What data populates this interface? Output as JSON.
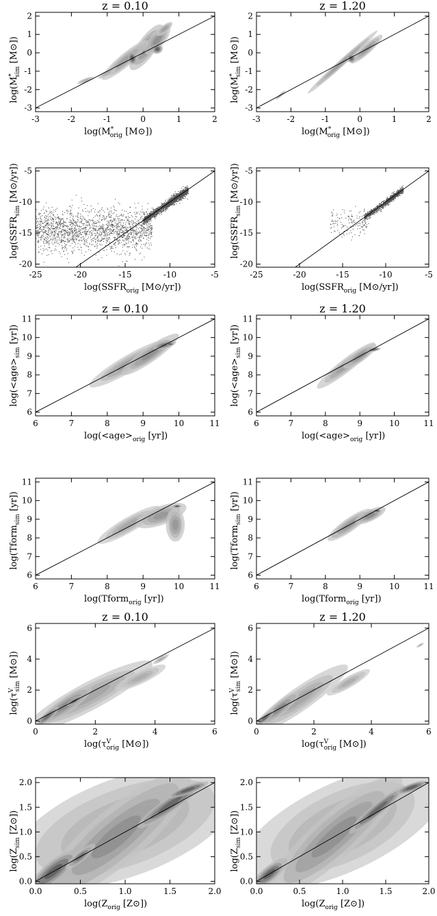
{
  "chart_data": [
    {
      "type": "heatmap",
      "panel": "mass-z010",
      "title": "z =   0.10",
      "xlabel": [
        "log(M",
        "*",
        "orig",
        " [M",
        "⊙",
        "])"
      ],
      "ylabel": [
        "log(M",
        "*",
        "sim",
        " [M",
        "⊙",
        "])"
      ],
      "xlim": [
        -3,
        2
      ],
      "ylim": [
        -3.2,
        2.2
      ],
      "xticks": [
        -3,
        -2,
        -1,
        0,
        1,
        2
      ],
      "yticks": [
        -3,
        -2,
        -1,
        0,
        1,
        2
      ],
      "identity_line": true,
      "density": [
        {
          "x": 0.1,
          "y": 0.3,
          "sx": 0.75,
          "sy": 0.5,
          "rot": 55,
          "level": 0.55
        },
        {
          "x": -0.5,
          "y": -0.4,
          "sx": 0.9,
          "sy": 0.35,
          "rot": 40,
          "level": 0.4
        },
        {
          "x": -1.6,
          "y": -1.5,
          "sx": 0.25,
          "sy": 0.12,
          "rot": 20,
          "level": 0.3
        },
        {
          "x": -1.0,
          "y": -1.1,
          "sx": 0.3,
          "sy": 0.15,
          "rot": 30,
          "level": 0.3
        },
        {
          "x": 0.4,
          "y": 0.7,
          "sx": 0.5,
          "sy": 0.4,
          "rot": 50,
          "level": 0.5
        },
        {
          "x": -0.3,
          "y": -0.3,
          "sx": 0.12,
          "sy": 0.35,
          "rot": 10,
          "level": 0.9
        },
        {
          "x": 0.4,
          "y": 0.2,
          "sx": 0.15,
          "sy": 0.25,
          "rot": 20,
          "level": 0.85
        },
        {
          "x": 0.6,
          "y": 1.3,
          "sx": 0.3,
          "sy": 0.2,
          "rot": 40,
          "level": 0.4
        }
      ]
    },
    {
      "type": "heatmap",
      "panel": "mass-z120",
      "title": "z =   1.20",
      "xlabel": [
        "log(M",
        "*",
        "orig",
        " [M",
        "⊙",
        "])"
      ],
      "ylabel": [
        "log(M",
        "*",
        "sim",
        " [M",
        "⊙",
        "])"
      ],
      "xlim": [
        -3,
        2
      ],
      "ylim": [
        -3.2,
        2.2
      ],
      "xticks": [
        -3,
        -2,
        -1,
        0,
        1,
        2
      ],
      "yticks": [
        -3,
        -2,
        -1,
        0,
        1,
        2
      ],
      "identity_line": true,
      "density": [
        {
          "x": -0.5,
          "y": -0.5,
          "sx": 1.3,
          "sy": 0.18,
          "rot": 42,
          "level": 0.45
        },
        {
          "x": 0.2,
          "y": 0.2,
          "sx": 0.6,
          "sy": 0.25,
          "rot": 42,
          "level": 0.45
        },
        {
          "x": -0.25,
          "y": -0.3,
          "sx": 0.12,
          "sy": 0.25,
          "rot": 30,
          "level": 0.85
        },
        {
          "x": -2.3,
          "y": -2.3,
          "sx": 0.2,
          "sy": 0.08,
          "rot": 42,
          "level": 0.3
        }
      ]
    },
    {
      "type": "scatter",
      "panel": "ssfr-z010",
      "title": "",
      "xlabel": [
        "log(SSFR",
        "",
        "orig",
        " [M",
        "⊙",
        "/yr])"
      ],
      "ylabel": [
        "log(SSFR",
        "",
        "sim",
        " [M",
        "⊙",
        "/yr])"
      ],
      "xlim": [
        -25,
        -5
      ],
      "ylim": [
        -20.5,
        -4.5
      ],
      "xticks": [
        -25,
        -20,
        -15,
        -10,
        -5
      ],
      "yticks": [
        -20,
        -15,
        -10,
        -5
      ],
      "identity_line": true,
      "clouds": [
        {
          "x0": -25,
          "x1": -12,
          "ymean": -14.5,
          "ysd": 1.7,
          "n": 1800,
          "trend": 0
        },
        {
          "x0": -13,
          "x1": -8,
          "ymean": -10.5,
          "ysd": 0.6,
          "n": 1400,
          "trend": 1
        },
        {
          "x0": -10.5,
          "x1": -8.5,
          "ymean": -9.0,
          "ysd": 0.35,
          "n": 700,
          "trend": 1
        }
      ]
    },
    {
      "type": "scatter",
      "panel": "ssfr-z120",
      "title": "",
      "xlabel": [
        "log(SSFR",
        "",
        "orig",
        " [M",
        "⊙",
        "/yr])"
      ],
      "ylabel": [
        "log(SSFR",
        "",
        "sim",
        " [M",
        "⊙",
        "/yr])"
      ],
      "xlim": [
        -25,
        -5
      ],
      "ylim": [
        -20.5,
        -4.5
      ],
      "xticks": [
        -25,
        -20,
        -15,
        -10,
        -5
      ],
      "yticks": [
        -20,
        -15,
        -10,
        -5
      ],
      "identity_line": true,
      "clouds": [
        {
          "x0": -16.5,
          "x1": -12,
          "ymean": -13.3,
          "ysd": 1.2,
          "n": 150,
          "trend": 0
        },
        {
          "x0": -12.5,
          "x1": -8,
          "ymean": -10.3,
          "ysd": 0.45,
          "n": 900,
          "trend": 1
        },
        {
          "x0": -10,
          "x1": -8.5,
          "ymean": -9.0,
          "ysd": 0.25,
          "n": 500,
          "trend": 1
        }
      ]
    },
    {
      "type": "heatmap",
      "panel": "age-z010",
      "title": "z =   0.10",
      "xlabel": [
        "log(<age>",
        "",
        "orig",
        " [yr])",
        "",
        ""
      ],
      "ylabel": [
        "log(<age>",
        "",
        "sim",
        " [yr])",
        "",
        ""
      ],
      "xlim": [
        6,
        11
      ],
      "ylim": [
        5.8,
        11.2
      ],
      "xticks": [
        6,
        7,
        8,
        9,
        10,
        11
      ],
      "yticks": [
        6,
        7,
        8,
        9,
        10,
        11
      ],
      "identity_line": true,
      "density": [
        {
          "x": 8.6,
          "y": 8.6,
          "sx": 1.2,
          "sy": 0.45,
          "rot": 30,
          "level": 0.4
        },
        {
          "x": 9.2,
          "y": 9.1,
          "sx": 0.9,
          "sy": 0.4,
          "rot": 35,
          "level": 0.5
        },
        {
          "x": 9.6,
          "y": 9.6,
          "sx": 0.35,
          "sy": 0.2,
          "rot": 15,
          "level": 0.7
        },
        {
          "x": 9.75,
          "y": 9.65,
          "sx": 0.12,
          "sy": 0.07,
          "rot": 0,
          "level": 0.95
        }
      ]
    },
    {
      "type": "heatmap",
      "panel": "age-z120",
      "title": "z =   1.20",
      "xlabel": [
        "log(<age>",
        "",
        "orig",
        " [yr])",
        "",
        ""
      ],
      "ylabel": [
        "log(<age>",
        "",
        "sim",
        " [yr])",
        "",
        ""
      ],
      "xlim": [
        6,
        11
      ],
      "ylim": [
        5.8,
        11.2
      ],
      "xticks": [
        6,
        7,
        8,
        9,
        10,
        11
      ],
      "yticks": [
        6,
        7,
        8,
        9,
        10,
        11
      ],
      "identity_line": true,
      "density": [
        {
          "x": 8.6,
          "y": 8.5,
          "sx": 1.0,
          "sy": 0.35,
          "rot": 38,
          "level": 0.4
        },
        {
          "x": 9.0,
          "y": 9.0,
          "sx": 0.6,
          "sy": 0.3,
          "rot": 35,
          "level": 0.5
        },
        {
          "x": 9.4,
          "y": 9.35,
          "sx": 0.2,
          "sy": 0.1,
          "rot": 10,
          "level": 0.85
        }
      ]
    },
    {
      "type": "heatmap",
      "panel": "tform-z010",
      "title": "",
      "xlabel": [
        "log(Tform",
        "",
        "orig",
        " [yr])",
        "",
        ""
      ],
      "ylabel": [
        "log(Tform",
        "",
        "sim",
        " [yr])",
        "",
        ""
      ],
      "xlim": [
        6,
        11
      ],
      "ylim": [
        5.8,
        11.2
      ],
      "xticks": [
        6,
        7,
        8,
        9,
        10,
        11
      ],
      "yticks": [
        6,
        7,
        8,
        9,
        10,
        11
      ],
      "identity_line": true,
      "density": [
        {
          "x": 8.6,
          "y": 8.7,
          "sx": 1.0,
          "sy": 0.4,
          "rot": 30,
          "level": 0.35
        },
        {
          "x": 9.5,
          "y": 9.2,
          "sx": 0.7,
          "sy": 0.5,
          "rot": 20,
          "level": 0.45
        },
        {
          "x": 9.9,
          "y": 8.7,
          "sx": 0.25,
          "sy": 0.9,
          "rot": 0,
          "level": 0.45
        },
        {
          "x": 9.95,
          "y": 9.7,
          "sx": 0.12,
          "sy": 0.08,
          "rot": 0,
          "level": 0.95
        }
      ]
    },
    {
      "type": "heatmap",
      "panel": "tform-z120",
      "title": "",
      "xlabel": [
        "log(Tform",
        "",
        "orig",
        " [yr])",
        "",
        ""
      ],
      "ylabel": [
        "log(Tform",
        "",
        "sim",
        " [yr])",
        "",
        ""
      ],
      "xlim": [
        6,
        11
      ],
      "ylim": [
        5.8,
        11.2
      ],
      "xticks": [
        6,
        7,
        8,
        9,
        10,
        11
      ],
      "yticks": [
        6,
        7,
        8,
        9,
        10,
        11
      ],
      "identity_line": true,
      "density": [
        {
          "x": 8.7,
          "y": 8.7,
          "sx": 0.8,
          "sy": 0.35,
          "rot": 35,
          "level": 0.45
        },
        {
          "x": 9.3,
          "y": 9.2,
          "sx": 0.45,
          "sy": 0.3,
          "rot": 25,
          "level": 0.55
        },
        {
          "x": 9.5,
          "y": 9.45,
          "sx": 0.12,
          "sy": 0.08,
          "rot": 0,
          "level": 0.9
        }
      ]
    },
    {
      "type": "heatmap",
      "panel": "tau-z010",
      "title": "z =   0.10",
      "xlabel": [
        "log(τ",
        "V",
        "orig",
        " [M",
        "⊙",
        "])"
      ],
      "ylabel": [
        "log(τ",
        "V",
        "sim",
        " [M",
        "⊙",
        "])"
      ],
      "xlim": [
        0,
        6
      ],
      "ylim": [
        -0.2,
        6.3
      ],
      "xticks": [
        0,
        2,
        4,
        6
      ],
      "yticks": [
        0,
        2,
        4,
        6
      ],
      "identity_line": true,
      "density": [
        {
          "x": 1.8,
          "y": 1.6,
          "sx": 2.3,
          "sy": 0.9,
          "rot": 28,
          "level": 0.35
        },
        {
          "x": 1.0,
          "y": 1.0,
          "sx": 1.1,
          "sy": 0.5,
          "rot": 35,
          "level": 0.55
        },
        {
          "x": 0.4,
          "y": 0.3,
          "sx": 0.5,
          "sy": 0.25,
          "rot": 40,
          "level": 0.75
        },
        {
          "x": 1.3,
          "y": 1.3,
          "sx": 0.3,
          "sy": 0.15,
          "rot": 30,
          "level": 0.9
        },
        {
          "x": 3.5,
          "y": 2.8,
          "sx": 0.9,
          "sy": 0.4,
          "rot": 25,
          "level": 0.3
        },
        {
          "x": 4.2,
          "y": 4.0,
          "sx": 0.3,
          "sy": 0.15,
          "rot": 30,
          "level": 0.3
        }
      ]
    },
    {
      "type": "heatmap",
      "panel": "tau-z120",
      "title": "z =   1.20",
      "xlabel": [
        "log(τ",
        "V",
        "orig",
        " [M",
        "⊙",
        "])"
      ],
      "ylabel": [
        "log(τ",
        "V",
        "sim",
        " [M",
        "⊙",
        "])"
      ],
      "xlim": [
        0,
        6
      ],
      "ylim": [
        -0.2,
        6.3
      ],
      "xticks": [
        0,
        2,
        4,
        6
      ],
      "yticks": [
        0,
        2,
        4,
        6
      ],
      "identity_line": true,
      "density": [
        {
          "x": 1.5,
          "y": 1.4,
          "sx": 1.9,
          "sy": 0.75,
          "rot": 35,
          "level": 0.35
        },
        {
          "x": 0.8,
          "y": 0.8,
          "sx": 0.9,
          "sy": 0.4,
          "rot": 40,
          "level": 0.55
        },
        {
          "x": 0.3,
          "y": 0.2,
          "sx": 0.4,
          "sy": 0.2,
          "rot": 40,
          "level": 0.8
        },
        {
          "x": 3.2,
          "y": 2.5,
          "sx": 0.8,
          "sy": 0.35,
          "rot": 30,
          "level": 0.3
        },
        {
          "x": 5.7,
          "y": 4.9,
          "sx": 0.15,
          "sy": 0.08,
          "rot": 30,
          "level": 0.3
        }
      ]
    },
    {
      "type": "heatmap",
      "panel": "z-z010",
      "title": "",
      "xlabel": [
        "log(Z",
        "",
        "orig",
        " [Z",
        "⊙",
        "])"
      ],
      "ylabel": [
        "log(Z",
        "",
        "sim",
        " [Z",
        "⊙",
        "])"
      ],
      "xlim": [
        0.0,
        2.0
      ],
      "ylim": [
        -0.05,
        2.1
      ],
      "xticks": [
        "0.0",
        "0.5",
        "1.0",
        "1.5",
        "2.0"
      ],
      "yticks": [
        "0.0",
        "0.5",
        "1.0",
        "1.5",
        "2.0"
      ],
      "identity_line": true,
      "density": [
        {
          "x": 1.0,
          "y": 1.1,
          "sx": 1.3,
          "sy": 1.0,
          "rot": 20,
          "level": 0.3
        },
        {
          "x": 0.9,
          "y": 0.9,
          "sx": 1.1,
          "sy": 0.55,
          "rot": 40,
          "level": 0.5
        },
        {
          "x": 0.2,
          "y": 0.2,
          "sx": 0.35,
          "sy": 0.2,
          "rot": 40,
          "level": 0.85
        },
        {
          "x": 1.5,
          "y": 1.55,
          "sx": 0.45,
          "sy": 0.15,
          "rot": 35,
          "level": 0.8
        },
        {
          "x": 1.7,
          "y": 1.85,
          "sx": 0.25,
          "sy": 0.08,
          "rot": 20,
          "level": 0.85
        },
        {
          "x": 0.5,
          "y": 0.5,
          "sx": 0.2,
          "sy": 0.1,
          "rot": 40,
          "level": 0.7
        }
      ]
    },
    {
      "type": "heatmap",
      "panel": "z-z120",
      "title": "",
      "xlabel": [
        "log(Z",
        "",
        "orig",
        " [Z",
        "⊙",
        "])"
      ],
      "ylabel": [
        "log(Z",
        "",
        "sim",
        " [Z",
        "⊙",
        "])"
      ],
      "xlim": [
        0.0,
        2.0
      ],
      "ylim": [
        -0.05,
        2.1
      ],
      "xticks": [
        "0.0",
        "0.5",
        "1.0",
        "1.5",
        "2.0"
      ],
      "yticks": [
        "0.0",
        "0.5",
        "1.0",
        "1.5",
        "2.0"
      ],
      "identity_line": true,
      "density": [
        {
          "x": 1.0,
          "y": 1.1,
          "sx": 1.25,
          "sy": 0.9,
          "rot": 25,
          "level": 0.3
        },
        {
          "x": 0.9,
          "y": 0.9,
          "sx": 1.0,
          "sy": 0.45,
          "rot": 42,
          "level": 0.5
        },
        {
          "x": 0.15,
          "y": 0.15,
          "sx": 0.25,
          "sy": 0.15,
          "rot": 40,
          "level": 0.85
        },
        {
          "x": 1.4,
          "y": 1.45,
          "sx": 0.45,
          "sy": 0.12,
          "rot": 40,
          "level": 0.8
        },
        {
          "x": 1.8,
          "y": 1.9,
          "sx": 0.2,
          "sy": 0.08,
          "rot": 20,
          "level": 0.85
        }
      ]
    }
  ]
}
